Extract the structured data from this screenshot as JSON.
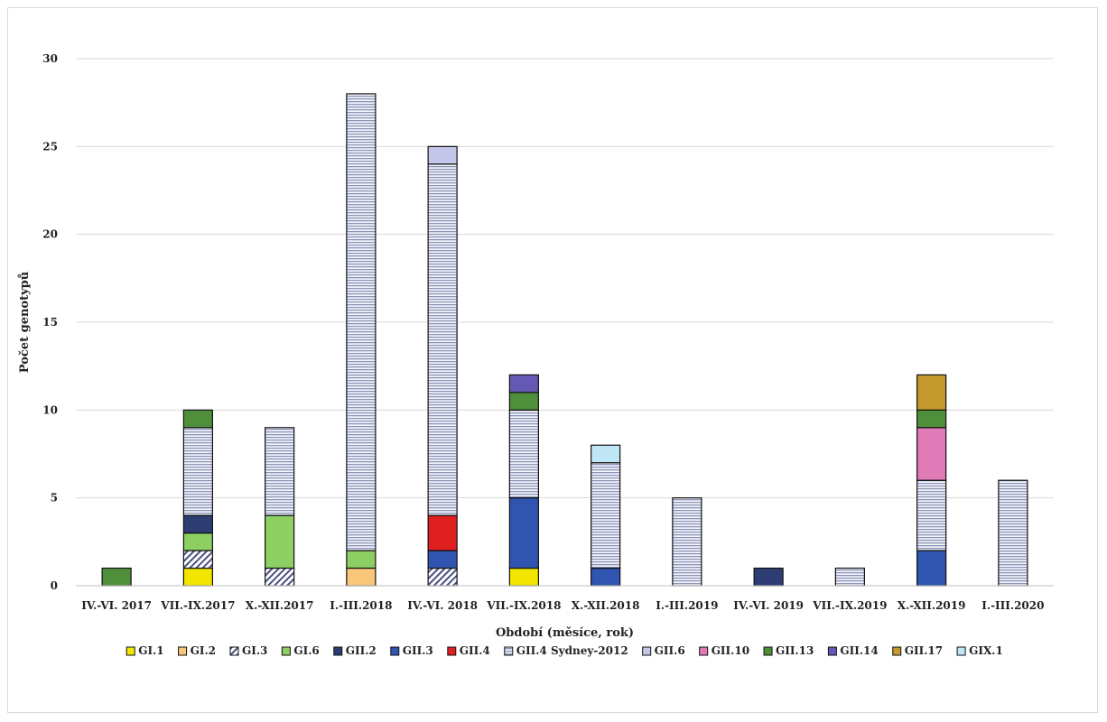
{
  "chart_data": {
    "type": "bar",
    "stacked": true,
    "title": "",
    "xlabel": "Období (měsíce, rok)",
    "ylabel": "Počet genotypů",
    "ylim": [
      0,
      30
    ],
    "yticks": [
      "0",
      "5",
      "10",
      "15",
      "20",
      "25",
      "30"
    ],
    "grid": true,
    "legend_position": "bottom",
    "categories": [
      "IV.-VI. 2017",
      "VII.-IX.2017",
      "X.-XII.2017",
      "I.-III.2018",
      "IV.-VI. 2018",
      "VII.-IX.2018",
      "X.-XII.2018",
      "I.-III.2019",
      "IV.-VI. 2019",
      "VII.-IX.2019",
      "X.-XII.2019",
      "I.-III.2020"
    ],
    "series": [
      {
        "name": "GI.1",
        "color": "#f2e600",
        "pattern": "none",
        "values": [
          0,
          1,
          0,
          0,
          0,
          1,
          0,
          0,
          0,
          0,
          0,
          0
        ]
      },
      {
        "name": "GI.2",
        "color": "#f9c77a",
        "pattern": "none",
        "values": [
          0,
          0,
          0,
          1,
          0,
          0,
          0,
          0,
          0,
          0,
          0,
          0
        ]
      },
      {
        "name": "GI.3",
        "color": "#ffffff",
        "pattern": "diagonal",
        "values": [
          0,
          1,
          1,
          0,
          1,
          0,
          0,
          0,
          0,
          0,
          0,
          0
        ]
      },
      {
        "name": "GI.6",
        "color": "#8dcf63",
        "pattern": "none",
        "values": [
          0,
          1,
          3,
          1,
          0,
          0,
          0,
          0,
          0,
          0,
          0,
          0
        ]
      },
      {
        "name": "GII.2",
        "color": "#2e3c74",
        "pattern": "none",
        "values": [
          0,
          1,
          0,
          0,
          0,
          0,
          0,
          0,
          1,
          0,
          0,
          0
        ]
      },
      {
        "name": "GII.3",
        "color": "#2f55b0",
        "pattern": "none",
        "values": [
          0,
          0,
          0,
          0,
          1,
          4,
          1,
          0,
          0,
          0,
          2,
          0
        ]
      },
      {
        "name": "GII.4",
        "color": "#e02020",
        "pattern": "none",
        "values": [
          0,
          0,
          0,
          0,
          2,
          0,
          0,
          0,
          0,
          0,
          0,
          0
        ]
      },
      {
        "name": "GII.4 Sydney-2012",
        "color": "#9fa6c4",
        "pattern": "horizontal",
        "values": [
          0,
          5,
          5,
          26,
          20,
          5,
          6,
          5,
          0,
          1,
          4,
          6
        ]
      },
      {
        "name": "GII.6",
        "color": "#c3c6e8",
        "pattern": "none",
        "values": [
          0,
          0,
          0,
          0,
          1,
          0,
          0,
          0,
          0,
          0,
          0,
          0
        ]
      },
      {
        "name": "GII.10",
        "color": "#e07bb8",
        "pattern": "none",
        "values": [
          0,
          0,
          0,
          0,
          0,
          0,
          0,
          0,
          0,
          0,
          3,
          0
        ]
      },
      {
        "name": "GII.13",
        "color": "#4f8f3c",
        "pattern": "none",
        "values": [
          1,
          1,
          0,
          0,
          0,
          1,
          0,
          0,
          0,
          0,
          1,
          0
        ]
      },
      {
        "name": "GII.14",
        "color": "#6659b5",
        "pattern": "none",
        "values": [
          0,
          0,
          0,
          0,
          0,
          1,
          0,
          0,
          0,
          0,
          0,
          0
        ]
      },
      {
        "name": "GII.17",
        "color": "#c49a2e",
        "pattern": "none",
        "values": [
          0,
          0,
          0,
          0,
          0,
          0,
          0,
          0,
          0,
          0,
          2,
          0
        ]
      },
      {
        "name": "GIX.1",
        "color": "#bfe6f7",
        "pattern": "none",
        "values": [
          0,
          0,
          0,
          0,
          0,
          0,
          1,
          0,
          0,
          0,
          0,
          0
        ]
      }
    ]
  }
}
